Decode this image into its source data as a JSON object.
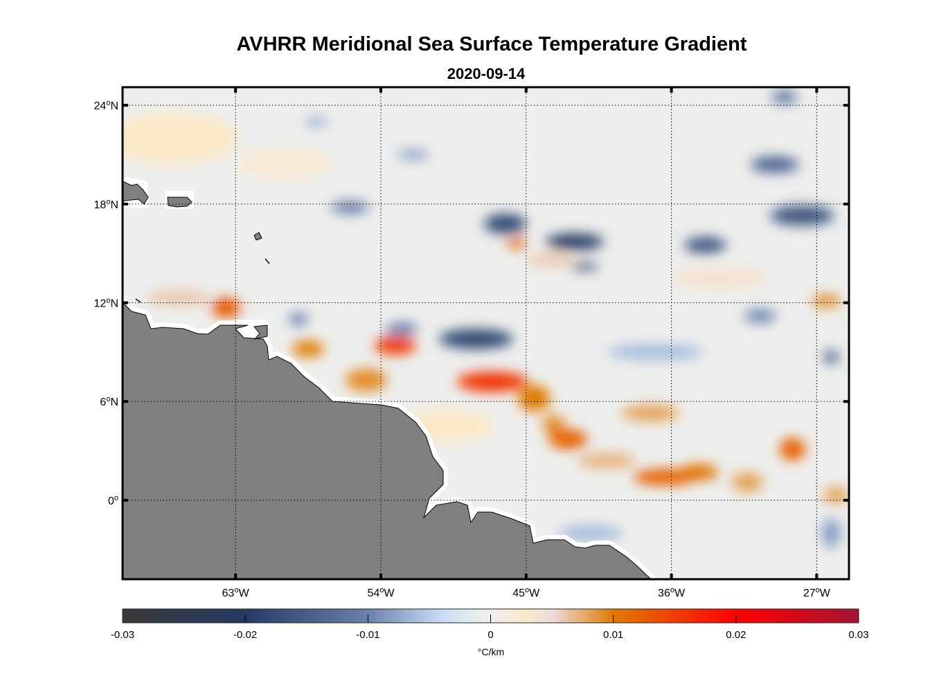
{
  "title": "AVHRR Meridional Sea Surface Temperature Gradient",
  "subtitle": "2020-09-14",
  "map": {
    "lon_range": [
      -70,
      -25
    ],
    "lat_range": [
      -4.8,
      25.1
    ],
    "lat_ticks": [
      {
        "value": 24,
        "deg": "24",
        "sup": "o",
        "hemi": "N"
      },
      {
        "value": 18,
        "deg": "18",
        "sup": "o",
        "hemi": "N"
      },
      {
        "value": 12,
        "deg": "12",
        "sup": "o",
        "hemi": "N"
      },
      {
        "value": 6,
        "deg": "6",
        "sup": "o",
        "hemi": "N"
      },
      {
        "value": 0,
        "deg": "0",
        "sup": "o",
        "hemi": ""
      }
    ],
    "lon_ticks": [
      {
        "value": -63,
        "deg": "63",
        "sup": "o",
        "hemi": "W"
      },
      {
        "value": -54,
        "deg": "54",
        "sup": "o",
        "hemi": "W"
      },
      {
        "value": -45,
        "deg": "45",
        "sup": "o",
        "hemi": "W"
      },
      {
        "value": -36,
        "deg": "36",
        "sup": "o",
        "hemi": "W"
      },
      {
        "value": -27,
        "deg": "27",
        "sup": "o",
        "hemi": "W"
      }
    ],
    "land_color": "#808080",
    "features": [
      {
        "lon": -66.9,
        "lat": 22.0,
        "rlon": 4.0,
        "rlat": 1.6,
        "value": 0.003
      },
      {
        "lon": -60.0,
        "lat": 20.5,
        "rlon": 3.0,
        "rlat": 1.0,
        "value": 0.002
      },
      {
        "lon": -63.6,
        "lat": 11.7,
        "rlon": 0.9,
        "rlat": 0.6,
        "value": 0.013
      },
      {
        "lon": -66.5,
        "lat": 12.3,
        "rlon": 2.0,
        "rlat": 0.5,
        "value": 0.006
      },
      {
        "lon": -58.5,
        "lat": 9.2,
        "rlon": 1.0,
        "rlat": 0.5,
        "value": 0.01
      },
      {
        "lon": -53.1,
        "lat": 9.4,
        "rlon": 1.3,
        "rlat": 0.55,
        "value": 0.015
      },
      {
        "lon": -54.9,
        "lat": 7.3,
        "rlon": 1.3,
        "rlat": 0.7,
        "value": 0.009
      },
      {
        "lon": -47.1,
        "lat": 7.2,
        "rlon": 2.2,
        "rlat": 0.6,
        "value": 0.016
      },
      {
        "lon": -44.5,
        "lat": 6.2,
        "rlon": 1.0,
        "rlat": 0.8,
        "value": 0.01
      },
      {
        "lon": -43.3,
        "lat": 4.6,
        "rlon": 0.7,
        "rlat": 0.6,
        "value": 0.009
      },
      {
        "lon": -42.4,
        "lat": 3.7,
        "rlon": 1.2,
        "rlat": 0.6,
        "value": 0.012
      },
      {
        "lon": -40.0,
        "lat": 2.4,
        "rlon": 1.8,
        "rlat": 0.5,
        "value": 0.007
      },
      {
        "lon": -36.4,
        "lat": 1.4,
        "rlon": 2.0,
        "rlat": 0.5,
        "value": 0.012
      },
      {
        "lon": -34.3,
        "lat": 1.7,
        "rlon": 1.2,
        "rlat": 0.5,
        "value": 0.011
      },
      {
        "lon": -37.3,
        "lat": 5.3,
        "rlon": 1.8,
        "rlat": 0.5,
        "value": 0.008
      },
      {
        "lon": -31.3,
        "lat": 1.1,
        "rlon": 1.0,
        "rlat": 0.6,
        "value": 0.008
      },
      {
        "lon": -28.5,
        "lat": 3.1,
        "rlon": 0.8,
        "rlat": 0.7,
        "value": 0.012
      },
      {
        "lon": -25.8,
        "lat": 0.3,
        "rlon": 0.8,
        "rlat": 0.5,
        "value": 0.008
      },
      {
        "lon": -45.6,
        "lat": 15.6,
        "rlon": 0.6,
        "rlat": 0.3,
        "value": 0.012
      },
      {
        "lon": -43.5,
        "lat": 14.6,
        "rlon": 1.5,
        "rlat": 0.4,
        "value": 0.006
      },
      {
        "lon": -26.4,
        "lat": 12.1,
        "rlon": 0.9,
        "rlat": 0.4,
        "value": 0.009
      },
      {
        "lon": -33.0,
        "lat": 13.5,
        "rlon": 3.0,
        "rlat": 0.7,
        "value": 0.004
      },
      {
        "lon": -50.0,
        "lat": 4.5,
        "rlon": 3.0,
        "rlat": 1.0,
        "value": 0.003
      },
      {
        "lon": -46.3,
        "lat": 16.8,
        "rlon": 1.3,
        "rlat": 0.6,
        "value": -0.018
      },
      {
        "lon": -42.0,
        "lat": 15.7,
        "rlon": 1.8,
        "rlat": 0.5,
        "value": -0.02
      },
      {
        "lon": -41.4,
        "lat": 14.2,
        "rlon": 0.9,
        "rlat": 0.2,
        "value": -0.02
      },
      {
        "lon": -48.1,
        "lat": 9.8,
        "rlon": 2.3,
        "rlat": 0.6,
        "value": -0.018
      },
      {
        "lon": -52.7,
        "lat": 10.4,
        "rlon": 1.0,
        "rlat": 0.4,
        "value": -0.01
      },
      {
        "lon": -33.9,
        "lat": 15.5,
        "rlon": 1.3,
        "rlat": 0.5,
        "value": -0.016
      },
      {
        "lon": -27.9,
        "lat": 17.3,
        "rlon": 2.0,
        "rlat": 0.6,
        "value": -0.016
      },
      {
        "lon": -29.6,
        "lat": 20.4,
        "rlon": 1.5,
        "rlat": 0.5,
        "value": -0.014
      },
      {
        "lon": -29.0,
        "lat": 24.5,
        "rlon": 0.8,
        "rlat": 0.4,
        "value": -0.012
      },
      {
        "lon": -55.9,
        "lat": 17.8,
        "rlon": 1.2,
        "rlat": 0.35,
        "value": -0.012
      },
      {
        "lon": -26.1,
        "lat": 8.7,
        "rlon": 0.5,
        "rlat": 0.4,
        "value": -0.014
      },
      {
        "lon": -59.1,
        "lat": 11.0,
        "rlon": 0.6,
        "rlat": 0.4,
        "value": -0.01
      },
      {
        "lon": -30.5,
        "lat": 11.2,
        "rlon": 1.0,
        "rlat": 0.4,
        "value": -0.01
      },
      {
        "lon": -37.0,
        "lat": 9.0,
        "rlon": 3.0,
        "rlat": 0.5,
        "value": -0.006
      },
      {
        "lon": -26.1,
        "lat": -2.0,
        "rlon": 0.6,
        "rlat": 0.9,
        "value": -0.008
      },
      {
        "lon": -41.0,
        "lat": -2.0,
        "rlon": 2.0,
        "rlat": 0.5,
        "value": -0.006
      },
      {
        "lon": -52.0,
        "lat": 21.0,
        "rlon": 1.0,
        "rlat": 0.3,
        "value": -0.008
      },
      {
        "lon": -58.0,
        "lat": 23.0,
        "rlon": 0.7,
        "rlat": 0.3,
        "value": -0.007
      }
    ]
  },
  "colorbar": {
    "ticks": [
      "-0.03",
      "-0.02",
      "-0.01",
      "0",
      "0.01",
      "0.02",
      "0.03"
    ],
    "range": [
      -0.03,
      0.03
    ],
    "unit": "°C/km",
    "stops": [
      {
        "value": -0.03,
        "color": "#3a3a3a"
      },
      {
        "value": -0.02,
        "color": "#253a63"
      },
      {
        "value": -0.01,
        "color": "#6a80ad"
      },
      {
        "value": -0.004,
        "color": "#c9dcf5"
      },
      {
        "value": -0.001,
        "color": "#e6efe9"
      },
      {
        "value": 0,
        "color": "#eeeeee"
      },
      {
        "value": 0.003,
        "color": "#fbe8c8"
      },
      {
        "value": 0.005,
        "color": "#ecdcdc"
      },
      {
        "value": 0.01,
        "color": "#e07b00"
      },
      {
        "value": 0.02,
        "color": "#ff0000"
      },
      {
        "value": 0.03,
        "color": "#a31434"
      }
    ]
  }
}
